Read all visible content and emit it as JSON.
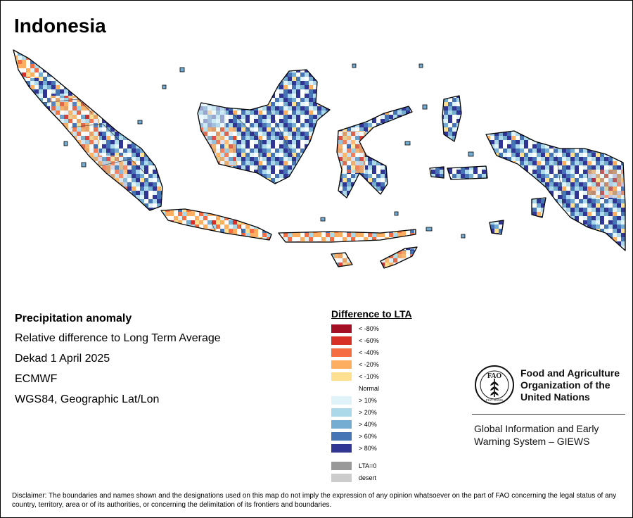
{
  "title": "Indonesia",
  "info": {
    "heading": "Precipitation anomaly",
    "description": "Relative difference to Long Term Average",
    "period": "Dekad 1 April 2025",
    "source": "ECMWF",
    "projection": "WGS84, Geographic Lat/Lon"
  },
  "legend": {
    "title": "Difference to LTA",
    "classes": [
      {
        "label": "< -80%",
        "color": "#a50f26"
      },
      {
        "label": "< -60%",
        "color": "#d73027"
      },
      {
        "label": "< -40%",
        "color": "#f46d43"
      },
      {
        "label": "< -20%",
        "color": "#fdae61"
      },
      {
        "label": "< -10%",
        "color": "#fee090"
      },
      {
        "label": "Normal",
        "color": "#ffffff"
      },
      {
        "label": "> 10%",
        "color": "#e0f3f8"
      },
      {
        "label": "> 20%",
        "color": "#abd9e9"
      },
      {
        "label": "> 40%",
        "color": "#74add1"
      },
      {
        "label": "> 60%",
        "color": "#4575b4"
      },
      {
        "label": "> 80%",
        "color": "#313695"
      }
    ],
    "extra": [
      {
        "label": "LTA=0",
        "color": "#999999"
      },
      {
        "label": "desert",
        "color": "#cccccc"
      }
    ]
  },
  "fao": {
    "logo_icon": "fao-logo-icon",
    "logo_letters": "FAO",
    "logo_motto": "FIAT PANIS",
    "name_line1": "Food and Agriculture",
    "name_line2": "Organization of the",
    "name_line3": "United Nations",
    "giews_line1": "Global Information and Early",
    "giews_line2": "Warning System – GIEWS"
  },
  "disclaimer": "Disclaimer: The boundaries and names shown and the designations used on this map do not imply the expression of any opinion whatsoever on the part of FAO concerning the legal status of any country, territory, area or of its authorities, or concerning the delimitation of its frontiers and boundaries."
}
